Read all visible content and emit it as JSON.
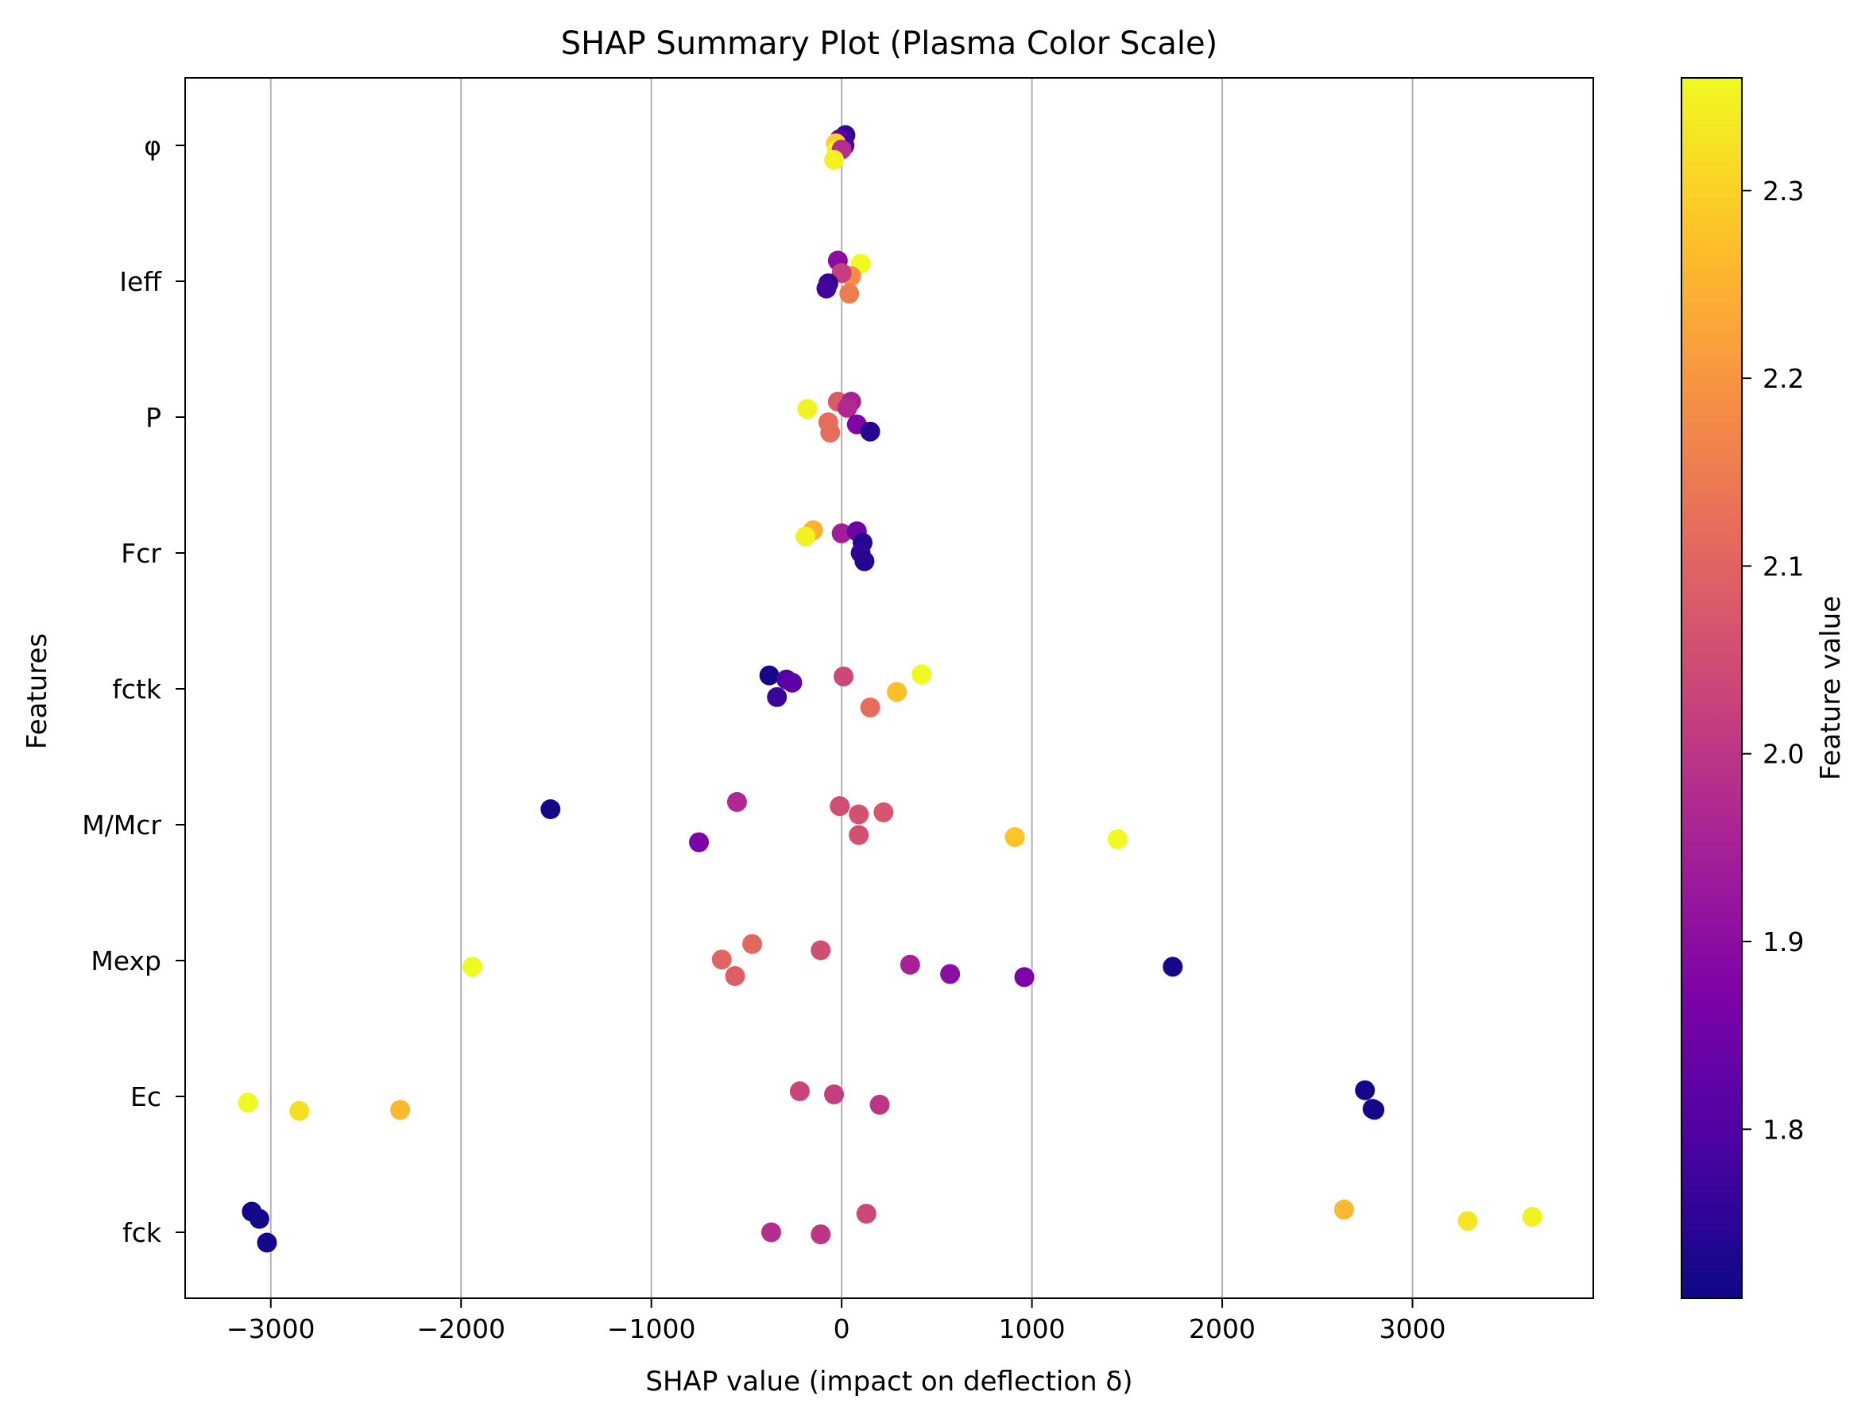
{
  "chart_data": {
    "type": "scatter",
    "title": "SHAP Summary Plot (Plasma Color Scale)",
    "xlabel": "SHAP value (impact on deflection δ)",
    "ylabel": "Features",
    "xlim": [
      -3450,
      3950
    ],
    "x_ticks": [
      -3000,
      -2000,
      -1000,
      0,
      1000,
      2000,
      3000
    ],
    "x_tick_labels": [
      "−3000",
      "−2000",
      "−1000",
      "0",
      "1000",
      "2000",
      "3000"
    ],
    "grid": "vertical",
    "features": [
      "φ",
      "Ieff",
      "P",
      "Fcr",
      "fctk",
      "M/Mcr",
      "Mexp",
      "Ec",
      "fck"
    ],
    "colorbar": {
      "label": "Feature value",
      "colormap": "plasma",
      "range": [
        1.71,
        2.36
      ],
      "ticks": [
        1.8,
        1.9,
        2.0,
        2.1,
        2.2,
        2.3
      ],
      "tick_labels": [
        "1.8",
        "1.9",
        "2.0",
        "2.1",
        "2.2",
        "2.3"
      ]
    },
    "series": [
      {
        "feature": "φ",
        "points": [
          {
            "x": 20,
            "jitter": 0.1,
            "value": 1.76
          },
          {
            "x": -10,
            "jitter": 0.06,
            "value": 1.82
          },
          {
            "x": 15,
            "jitter": 0.0,
            "value": 1.78
          },
          {
            "x": -30,
            "jitter": 0.02,
            "value": 2.3
          },
          {
            "x": -25,
            "jitter": -0.05,
            "value": 2.36
          },
          {
            "x": 0,
            "jitter": -0.04,
            "value": 1.98
          },
          {
            "x": -40,
            "jitter": -0.14,
            "value": 2.35
          }
        ]
      },
      {
        "feature": "Ieff",
        "points": [
          {
            "x": -20,
            "jitter": 0.2,
            "value": 1.9
          },
          {
            "x": 100,
            "jitter": 0.17,
            "value": 2.36
          },
          {
            "x": 50,
            "jitter": 0.05,
            "value": 2.18
          },
          {
            "x": 0,
            "jitter": 0.08,
            "value": 2.02
          },
          {
            "x": -70,
            "jitter": -0.02,
            "value": 1.76
          },
          {
            "x": -80,
            "jitter": -0.07,
            "value": 1.78
          },
          {
            "x": 40,
            "jitter": -0.12,
            "value": 2.15
          }
        ]
      },
      {
        "feature": "P",
        "points": [
          {
            "x": -180,
            "jitter": 0.08,
            "value": 2.35
          },
          {
            "x": -20,
            "jitter": 0.15,
            "value": 2.08
          },
          {
            "x": 50,
            "jitter": 0.15,
            "value": 1.95
          },
          {
            "x": 30,
            "jitter": 0.09,
            "value": 1.97
          },
          {
            "x": -70,
            "jitter": -0.05,
            "value": 2.12
          },
          {
            "x": 80,
            "jitter": -0.07,
            "value": 1.88
          },
          {
            "x": -60,
            "jitter": -0.15,
            "value": 2.12
          },
          {
            "x": 150,
            "jitter": -0.14,
            "value": 1.74
          }
        ]
      },
      {
        "feature": "Fcr",
        "points": [
          {
            "x": -150,
            "jitter": 0.22,
            "value": 2.25
          },
          {
            "x": -190,
            "jitter": 0.16,
            "value": 2.35
          },
          {
            "x": 0,
            "jitter": 0.19,
            "value": 1.94
          },
          {
            "x": 80,
            "jitter": 0.21,
            "value": 1.85
          },
          {
            "x": 110,
            "jitter": 0.1,
            "value": 1.74
          },
          {
            "x": 100,
            "jitter": 0.0,
            "value": 1.76
          },
          {
            "x": 120,
            "jitter": -0.08,
            "value": 1.74
          }
        ]
      },
      {
        "feature": "fctk",
        "points": [
          {
            "x": -380,
            "jitter": 0.13,
            "value": 1.72
          },
          {
            "x": -290,
            "jitter": 0.09,
            "value": 1.8
          },
          {
            "x": -260,
            "jitter": 0.06,
            "value": 1.82
          },
          {
            "x": -340,
            "jitter": -0.08,
            "value": 1.77
          },
          {
            "x": 10,
            "jitter": 0.12,
            "value": 2.04
          },
          {
            "x": 420,
            "jitter": 0.14,
            "value": 2.36
          },
          {
            "x": 290,
            "jitter": -0.03,
            "value": 2.27
          },
          {
            "x": 150,
            "jitter": -0.18,
            "value": 2.12
          }
        ]
      },
      {
        "feature": "M/Mcr",
        "points": [
          {
            "x": -1530,
            "jitter": 0.15,
            "value": 1.72
          },
          {
            "x": -550,
            "jitter": 0.22,
            "value": 1.97
          },
          {
            "x": -750,
            "jitter": -0.17,
            "value": 1.87
          },
          {
            "x": -10,
            "jitter": 0.18,
            "value": 2.05
          },
          {
            "x": 90,
            "jitter": 0.1,
            "value": 2.06
          },
          {
            "x": 220,
            "jitter": 0.12,
            "value": 2.07
          },
          {
            "x": 90,
            "jitter": -0.1,
            "value": 2.06
          },
          {
            "x": 910,
            "jitter": -0.12,
            "value": 2.28
          },
          {
            "x": 1450,
            "jitter": -0.14,
            "value": 2.36
          }
        ]
      },
      {
        "feature": "Mexp",
        "points": [
          {
            "x": -1940,
            "jitter": -0.06,
            "value": 2.36
          },
          {
            "x": -630,
            "jitter": 0.01,
            "value": 2.1
          },
          {
            "x": -470,
            "jitter": 0.16,
            "value": 2.11
          },
          {
            "x": -560,
            "jitter": -0.15,
            "value": 2.09
          },
          {
            "x": -110,
            "jitter": 0.1,
            "value": 2.05
          },
          {
            "x": 360,
            "jitter": -0.04,
            "value": 1.95
          },
          {
            "x": 570,
            "jitter": -0.13,
            "value": 1.9
          },
          {
            "x": 960,
            "jitter": -0.16,
            "value": 1.87
          },
          {
            "x": 1740,
            "jitter": -0.06,
            "value": 1.72
          }
        ]
      },
      {
        "feature": "Ec",
        "points": [
          {
            "x": -3120,
            "jitter": -0.06,
            "value": 2.36
          },
          {
            "x": -2850,
            "jitter": -0.14,
            "value": 2.32
          },
          {
            "x": -2320,
            "jitter": -0.13,
            "value": 2.26
          },
          {
            "x": -220,
            "jitter": 0.05,
            "value": 2.03
          },
          {
            "x": -40,
            "jitter": 0.02,
            "value": 2.02
          },
          {
            "x": 200,
            "jitter": -0.08,
            "value": 2.0
          },
          {
            "x": 2750,
            "jitter": 0.06,
            "value": 1.72
          },
          {
            "x": 2800,
            "jitter": -0.13,
            "value": 1.72
          },
          {
            "x": 2790,
            "jitter": -0.12,
            "value": 1.72
          }
        ]
      },
      {
        "feature": "fck",
        "points": [
          {
            "x": -3100,
            "jitter": 0.2,
            "value": 1.72
          },
          {
            "x": -3060,
            "jitter": 0.13,
            "value": 1.72
          },
          {
            "x": -3020,
            "jitter": -0.1,
            "value": 1.72
          },
          {
            "x": -370,
            "jitter": 0.0,
            "value": 1.98
          },
          {
            "x": -110,
            "jitter": -0.02,
            "value": 2.0
          },
          {
            "x": 130,
            "jitter": 0.18,
            "value": 2.04
          },
          {
            "x": 2640,
            "jitter": 0.22,
            "value": 2.26
          },
          {
            "x": 3290,
            "jitter": 0.11,
            "value": 2.33
          },
          {
            "x": 3630,
            "jitter": 0.15,
            "value": 2.35
          }
        ]
      }
    ]
  }
}
